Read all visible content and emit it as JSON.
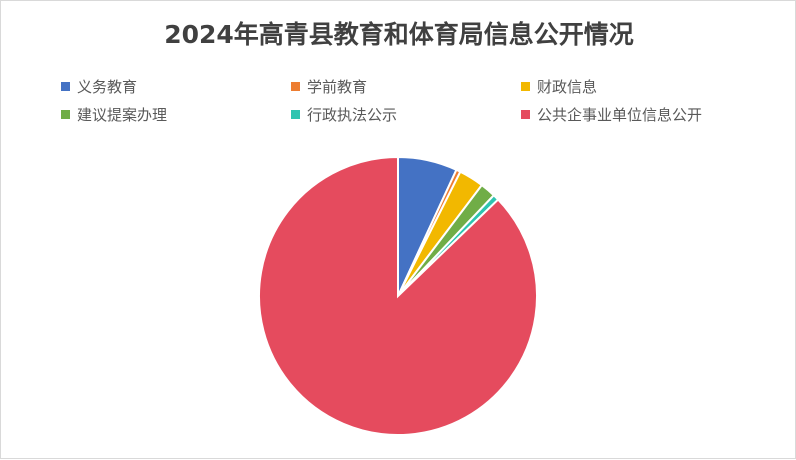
{
  "chart_data": {
    "type": "pie",
    "title": "2024年高青县教育和体育局信息公开情况",
    "legend_placement": "top",
    "categories": [
      "义务教育",
      "学前教育",
      "财政信息",
      "建议提案办理",
      "行政执法公示",
      "公共企事业单位信息公开"
    ],
    "values": [
      6.9,
      0.5,
      2.9,
      1.8,
      0.7,
      87.2
    ],
    "colors": [
      "#4472c4",
      "#ed7d31",
      "#f2b800",
      "#70ad47",
      "#2ec4b0",
      "#e54b5e"
    ]
  }
}
